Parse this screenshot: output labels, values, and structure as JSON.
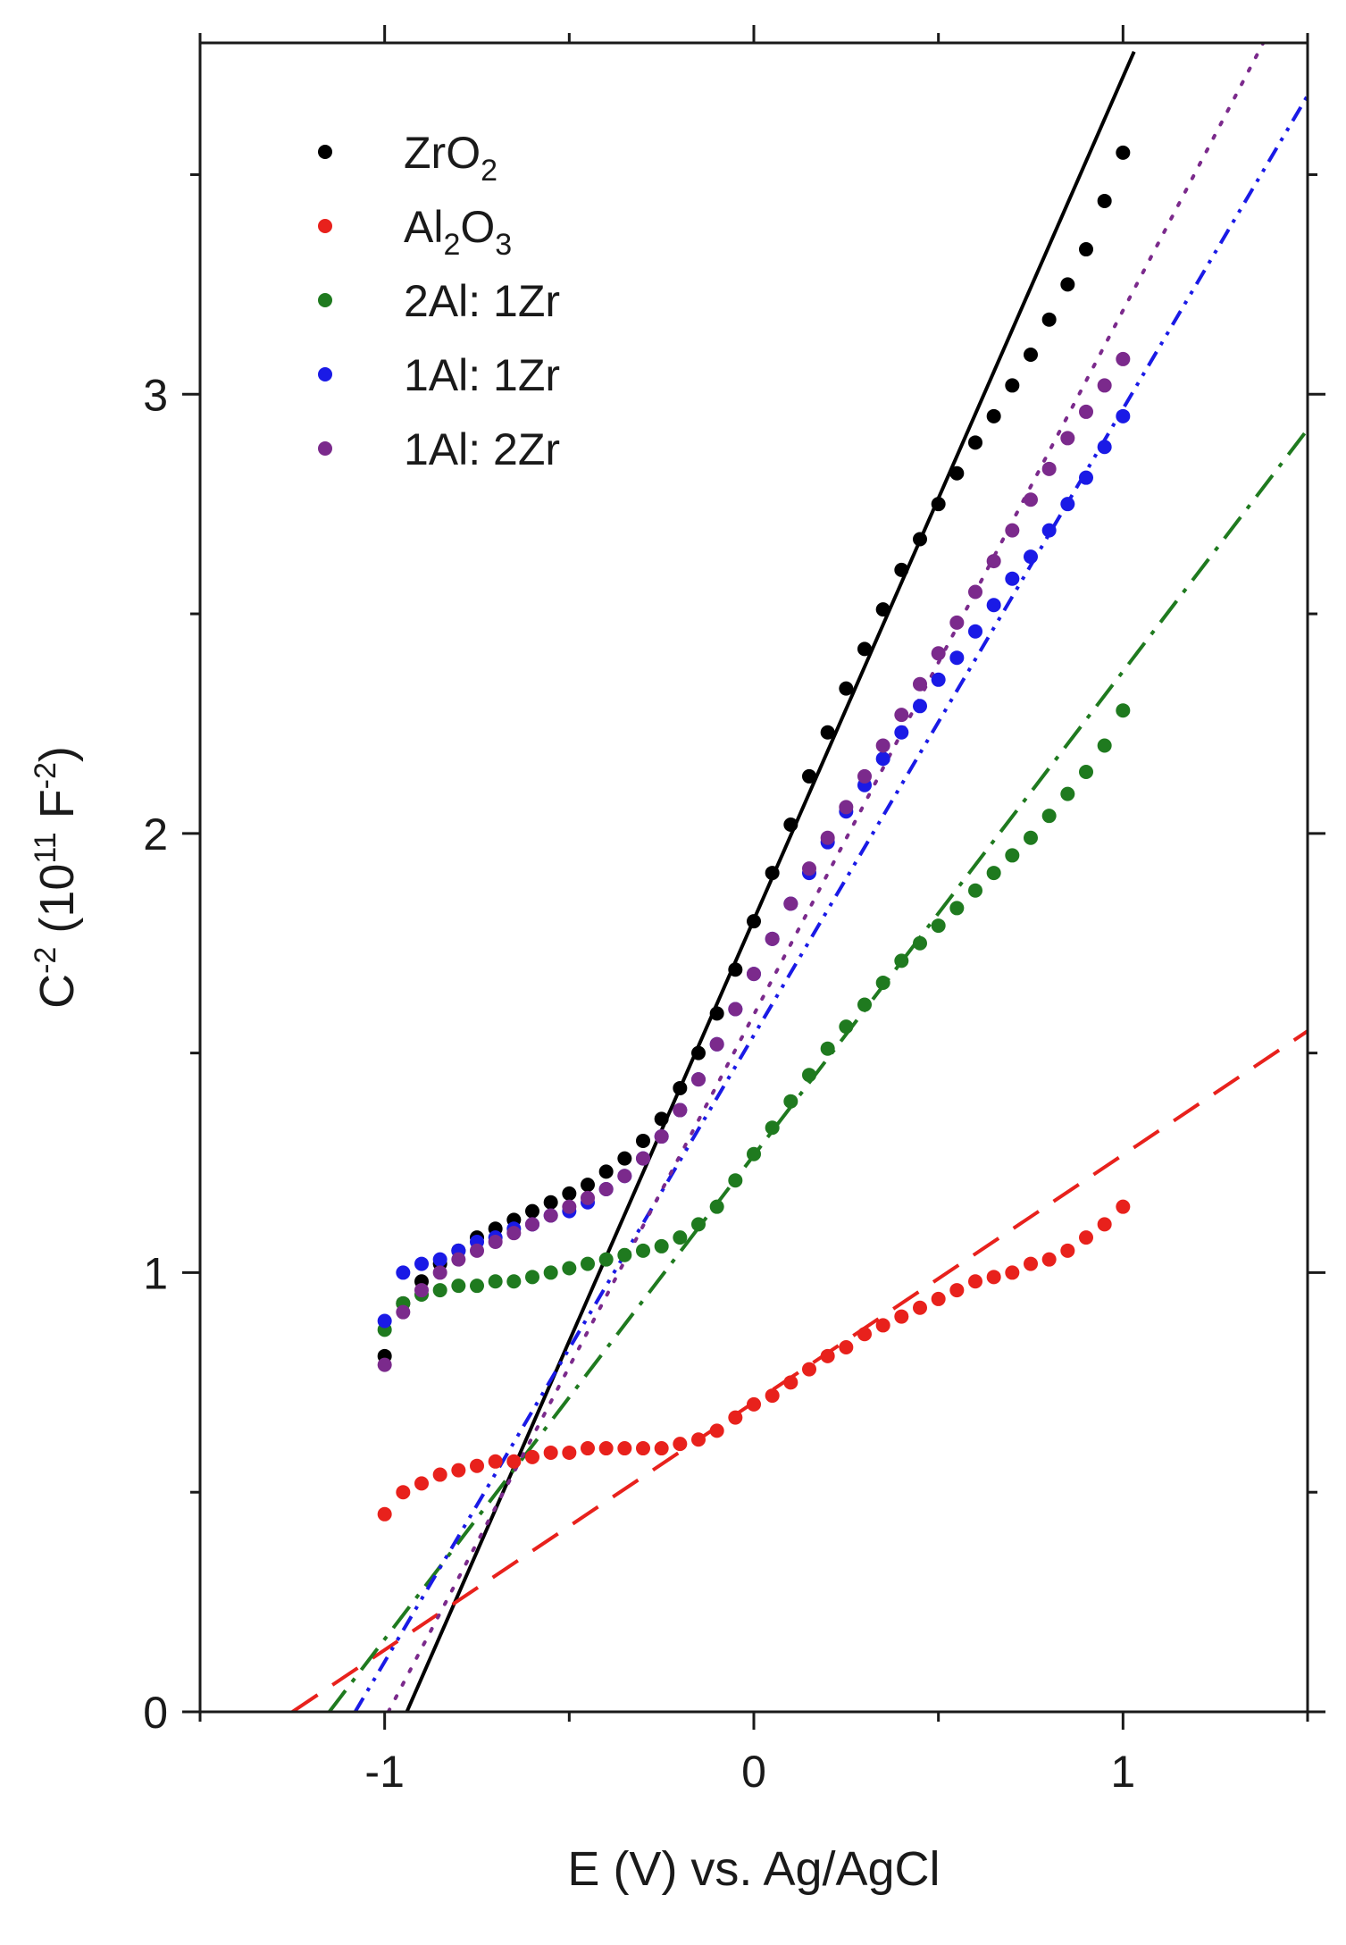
{
  "chart_data": {
    "type": "scatter",
    "xlabel": "E (V) vs. Ag/AgCl",
    "ylabel": {
      "base": "C",
      "base_exp": "-2",
      "units_open": " (10",
      "units_exp": "11",
      "units_mid": " F",
      "units_exp2": "-2",
      "units_close": ")"
    },
    "xlim": [
      -1.5,
      1.5
    ],
    "ylim": [
      0,
      3.8
    ],
    "xticks": [
      -1,
      0,
      1
    ],
    "xtick_labels": [
      "-1",
      "0",
      "1"
    ],
    "yticks": [
      0,
      1,
      2,
      3
    ],
    "ytick_labels": [
      "0",
      "1",
      "2",
      "3"
    ],
    "x_minor_step": 0.5,
    "y_minor_step": 0.5,
    "legend_position": "top-left",
    "series": [
      {
        "id": "zro2",
        "name": "ZrO2",
        "legend": [
          {
            "t": "ZrO"
          },
          {
            "t": "2",
            "sub": true
          }
        ],
        "color": "#000000",
        "x": [
          -1.0,
          -0.95,
          -0.9,
          -0.85,
          -0.8,
          -0.75,
          -0.7,
          -0.65,
          -0.6,
          -0.55,
          -0.5,
          -0.45,
          -0.4,
          -0.35,
          -0.3,
          -0.25,
          -0.2,
          -0.15,
          -0.1,
          -0.05,
          0.0,
          0.05,
          0.1,
          0.15,
          0.2,
          0.25,
          0.3,
          0.35,
          0.4,
          0.45,
          0.5,
          0.55,
          0.6,
          0.65,
          0.7,
          0.75,
          0.8,
          0.85,
          0.9,
          0.95,
          1.0
        ],
        "y": [
          0.81,
          0.93,
          0.98,
          1.02,
          1.05,
          1.08,
          1.1,
          1.12,
          1.14,
          1.16,
          1.18,
          1.2,
          1.23,
          1.26,
          1.3,
          1.35,
          1.42,
          1.5,
          1.59,
          1.69,
          1.8,
          1.91,
          2.02,
          2.13,
          2.23,
          2.33,
          2.42,
          2.51,
          2.6,
          2.67,
          2.75,
          2.82,
          2.89,
          2.95,
          3.02,
          3.09,
          3.17,
          3.25,
          3.33,
          3.44,
          3.55
        ],
        "fit": {
          "x0": -0.94,
          "x1": 1.03,
          "y0": 0.0,
          "y1": 3.78,
          "dash": ""
        }
      },
      {
        "id": "al2o3",
        "name": "Al2O3",
        "legend": [
          {
            "t": "Al"
          },
          {
            "t": "2",
            "sub": true
          },
          {
            "t": "O"
          },
          {
            "t": "3",
            "sub": true
          }
        ],
        "color": "#e8211c",
        "x": [
          -1.0,
          -0.95,
          -0.9,
          -0.85,
          -0.8,
          -0.75,
          -0.7,
          -0.65,
          -0.6,
          -0.55,
          -0.5,
          -0.45,
          -0.4,
          -0.35,
          -0.3,
          -0.25,
          -0.2,
          -0.15,
          -0.1,
          -0.05,
          0.0,
          0.05,
          0.1,
          0.15,
          0.2,
          0.25,
          0.3,
          0.35,
          0.4,
          0.45,
          0.5,
          0.55,
          0.6,
          0.65,
          0.7,
          0.75,
          0.8,
          0.85,
          0.9,
          0.95,
          1.0
        ],
        "y": [
          0.45,
          0.5,
          0.52,
          0.54,
          0.55,
          0.56,
          0.57,
          0.57,
          0.58,
          0.59,
          0.59,
          0.6,
          0.6,
          0.6,
          0.6,
          0.6,
          0.61,
          0.62,
          0.64,
          0.67,
          0.7,
          0.72,
          0.75,
          0.78,
          0.81,
          0.83,
          0.86,
          0.88,
          0.9,
          0.92,
          0.94,
          0.96,
          0.98,
          0.99,
          1.0,
          1.02,
          1.03,
          1.05,
          1.08,
          1.11,
          1.15
        ],
        "fit": {
          "x0": -1.25,
          "x1": 1.5,
          "y0": 0.0,
          "y1": 1.55,
          "dash": "34,20"
        }
      },
      {
        "id": "2al1zr",
        "name": "2Al: 1Zr",
        "legend": [
          {
            "t": "2Al: 1Zr"
          }
        ],
        "color": "#1f7a1f",
        "x": [
          -1.0,
          -0.95,
          -0.9,
          -0.85,
          -0.8,
          -0.75,
          -0.7,
          -0.65,
          -0.6,
          -0.55,
          -0.5,
          -0.45,
          -0.4,
          -0.35,
          -0.3,
          -0.25,
          -0.2,
          -0.15,
          -0.1,
          -0.05,
          0.0,
          0.05,
          0.1,
          0.15,
          0.2,
          0.25,
          0.3,
          0.35,
          0.4,
          0.45,
          0.5,
          0.55,
          0.6,
          0.65,
          0.7,
          0.75,
          0.8,
          0.85,
          0.9,
          0.95,
          1.0
        ],
        "y": [
          0.87,
          0.93,
          0.95,
          0.96,
          0.97,
          0.97,
          0.98,
          0.98,
          0.99,
          1.0,
          1.01,
          1.02,
          1.03,
          1.04,
          1.05,
          1.06,
          1.08,
          1.11,
          1.15,
          1.21,
          1.27,
          1.33,
          1.39,
          1.45,
          1.51,
          1.56,
          1.61,
          1.66,
          1.71,
          1.75,
          1.79,
          1.83,
          1.87,
          1.91,
          1.95,
          1.99,
          2.04,
          2.09,
          2.14,
          2.2,
          2.28
        ],
        "fit": {
          "x0": -1.15,
          "x1": 1.5,
          "y0": 0.0,
          "y1": 2.92,
          "dash": "30,12,5,12"
        }
      },
      {
        "id": "1al1zr",
        "name": "1Al: 1Zr",
        "legend": [
          {
            "t": "1Al: 1Zr"
          }
        ],
        "color": "#1a1ae6",
        "x": [
          -1.0,
          -0.95,
          -0.9,
          -0.85,
          -0.8,
          -0.75,
          -0.7,
          -0.65,
          -0.6,
          -0.55,
          -0.5,
          -0.45,
          -0.4,
          -0.35,
          -0.3,
          -0.25,
          -0.2,
          -0.15,
          -0.1,
          -0.05,
          0.0,
          0.05,
          0.1,
          0.15,
          0.2,
          0.25,
          0.3,
          0.35,
          0.4,
          0.45,
          0.5,
          0.55,
          0.6,
          0.65,
          0.7,
          0.75,
          0.8,
          0.85,
          0.9,
          0.95,
          1.0
        ],
        "y": [
          0.89,
          1.0,
          1.02,
          1.03,
          1.05,
          1.07,
          1.08,
          1.1,
          1.11,
          1.13,
          1.14,
          1.16,
          1.19,
          1.22,
          1.26,
          1.31,
          1.37,
          1.44,
          1.52,
          1.6,
          1.68,
          1.76,
          1.84,
          1.91,
          1.98,
          2.05,
          2.11,
          2.17,
          2.23,
          2.29,
          2.35,
          2.4,
          2.46,
          2.52,
          2.58,
          2.63,
          2.69,
          2.75,
          2.81,
          2.88,
          2.95
        ],
        "fit": {
          "x0": -1.08,
          "x1": 1.5,
          "y0": 0.0,
          "y1": 3.68,
          "dash": "18,9,4,9,4,9"
        }
      },
      {
        "id": "1al2zr",
        "name": "1Al: 2Zr",
        "legend": [
          {
            "t": "1Al: 2Zr"
          }
        ],
        "color": "#7b2a8c",
        "x": [
          -1.0,
          -0.95,
          -0.9,
          -0.85,
          -0.8,
          -0.75,
          -0.7,
          -0.65,
          -0.6,
          -0.55,
          -0.5,
          -0.45,
          -0.4,
          -0.35,
          -0.3,
          -0.25,
          -0.2,
          -0.15,
          -0.1,
          -0.05,
          0.0,
          0.05,
          0.1,
          0.15,
          0.2,
          0.25,
          0.3,
          0.35,
          0.4,
          0.45,
          0.5,
          0.55,
          0.6,
          0.65,
          0.7,
          0.75,
          0.8,
          0.85,
          0.9,
          0.95,
          1.0
        ],
        "y": [
          0.79,
          0.91,
          0.96,
          1.0,
          1.03,
          1.05,
          1.07,
          1.09,
          1.11,
          1.13,
          1.15,
          1.17,
          1.19,
          1.22,
          1.26,
          1.31,
          1.37,
          1.44,
          1.52,
          1.6,
          1.68,
          1.76,
          1.84,
          1.92,
          1.99,
          2.06,
          2.13,
          2.2,
          2.27,
          2.34,
          2.41,
          2.48,
          2.55,
          2.62,
          2.69,
          2.76,
          2.83,
          2.9,
          2.96,
          3.02,
          3.08
        ],
        "fit": {
          "x0": -0.99,
          "x1": 1.38,
          "y0": 0.0,
          "y1": 3.8,
          "dash": "3,14"
        }
      }
    ]
  }
}
